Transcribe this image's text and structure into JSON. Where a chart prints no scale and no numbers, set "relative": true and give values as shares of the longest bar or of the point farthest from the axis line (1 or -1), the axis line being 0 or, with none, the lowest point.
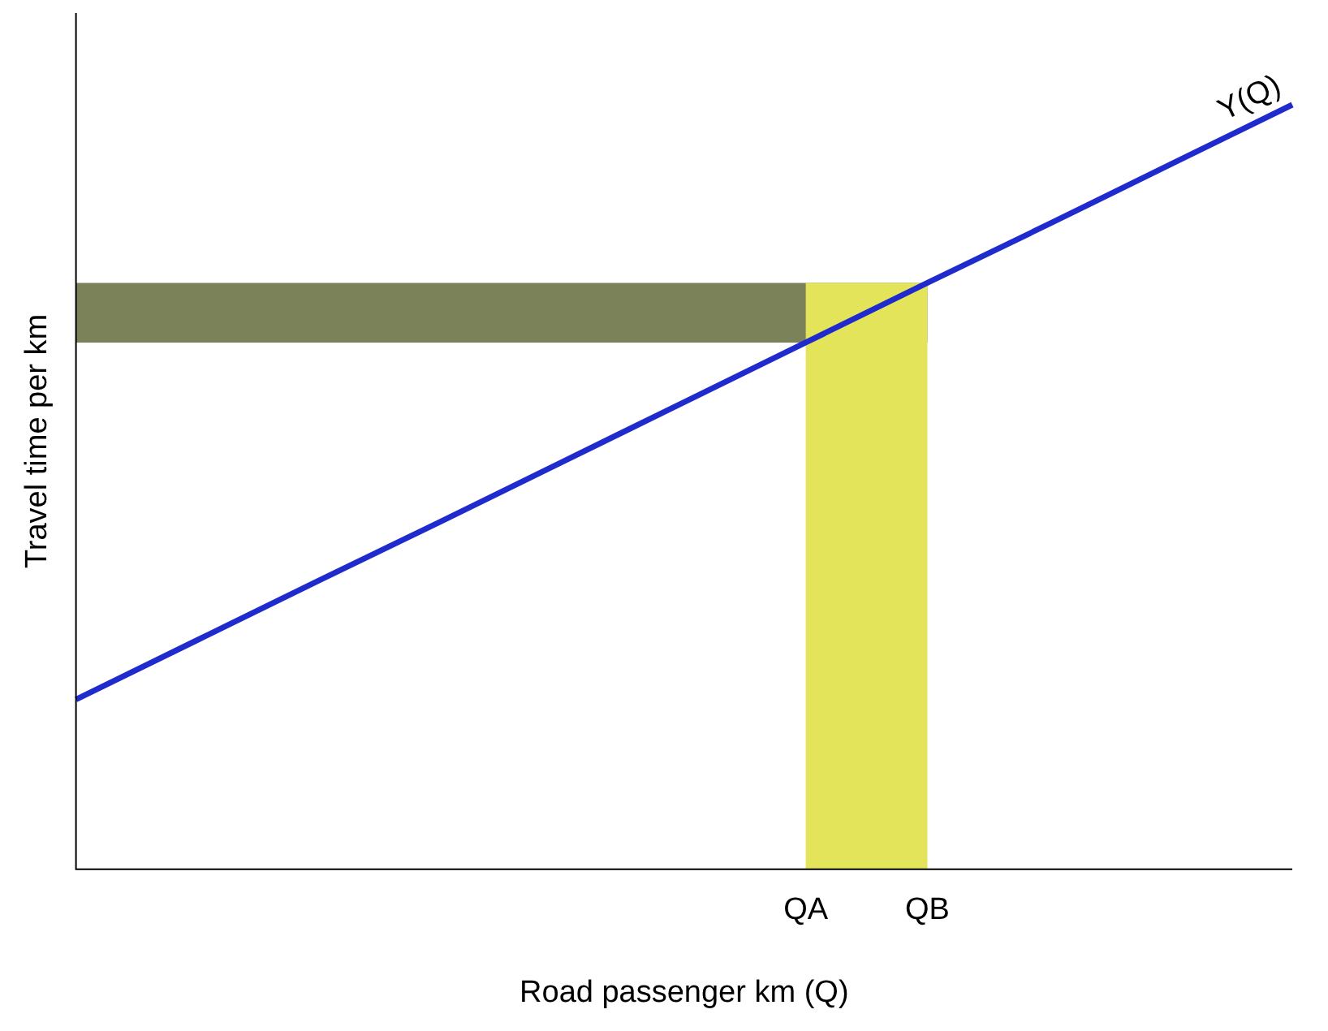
{
  "chart_data": {
    "type": "line",
    "relative": true,
    "xlabel": "Road passenger km (Q)",
    "ylabel": "Travel time per km",
    "categories": [
      null,
      null,
      null,
      null,
      null,
      null,
      "QA",
      "QB",
      null,
      null,
      null
    ],
    "series": [
      {
        "name": "Y(Q)",
        "color": "#1f2bcc",
        "values": [
          0.222,
          0.3,
          0.378,
          0.455,
          0.533,
          0.611,
          0.689,
          0.767,
          0.844,
          0.922,
          1
        ]
      }
    ],
    "bands": [
      {
        "axis": "y",
        "from": 0.689,
        "to": 0.767,
        "label": null,
        "color": "#7b8159"
      },
      {
        "axis": "x",
        "from": "QA",
        "to": "QB",
        "label": null,
        "color": "#e4e45a"
      }
    ],
    "tick_labels": "x",
    "grid": false,
    "legend": false,
    "marker": "none",
    "line_style": "solid"
  }
}
